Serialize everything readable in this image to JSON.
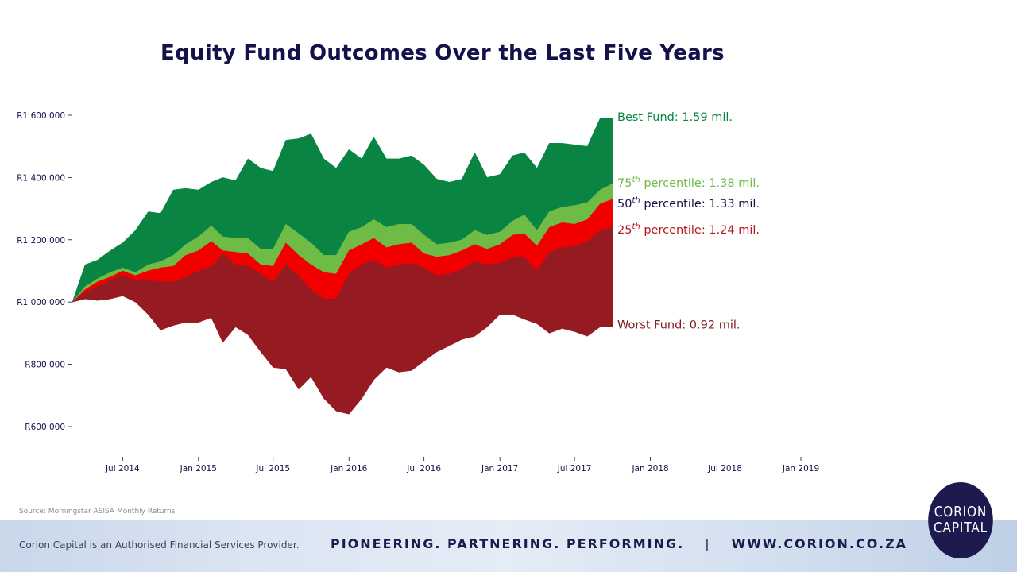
{
  "chart_data": {
    "type": "area",
    "title": "Equity Fund Outcomes Over the Last Five Years",
    "xlabel": "",
    "ylabel": "",
    "x_range": [
      "2014-03-01",
      "2019-01-01"
    ],
    "ylim": [
      520000,
      1660000
    ],
    "x_ticks": [
      {
        "date": "2014-07-01",
        "label": "Jul 2014"
      },
      {
        "date": "2015-01-01",
        "label": "Jan 2015"
      },
      {
        "date": "2015-07-01",
        "label": "Jul 2015"
      },
      {
        "date": "2016-01-01",
        "label": "Jan 2016"
      },
      {
        "date": "2016-07-01",
        "label": "Jul 2016"
      },
      {
        "date": "2017-01-01",
        "label": "Jan 2017"
      },
      {
        "date": "2017-07-01",
        "label": "Jul 2017"
      },
      {
        "date": "2018-01-01",
        "label": "Jan 2018"
      },
      {
        "date": "2018-07-01",
        "label": "Jul 2018"
      },
      {
        "date": "2019-01-01",
        "label": "Jan 2019"
      }
    ],
    "y_ticks": [
      {
        "value": 600000,
        "label": "R600 000"
      },
      {
        "value": 800000,
        "label": "R800 000"
      },
      {
        "value": 1000000,
        "label": "R1 000 000"
      },
      {
        "value": 1200000,
        "label": "R1 200 000"
      },
      {
        "value": 1400000,
        "label": "R1 400 000"
      },
      {
        "value": 1600000,
        "label": "R1 600 000"
      }
    ],
    "grid": false,
    "legend": "none",
    "x": [
      "2014-03",
      "2014-04",
      "2014-05",
      "2014-06",
      "2014-07",
      "2014-08",
      "2014-09",
      "2014-10",
      "2014-11",
      "2014-12",
      "2015-01",
      "2015-02",
      "2015-03",
      "2015-04",
      "2015-05",
      "2015-06",
      "2015-07",
      "2015-08",
      "2015-09",
      "2015-10",
      "2015-11",
      "2015-12",
      "2016-01",
      "2016-02",
      "2016-03",
      "2016-04",
      "2016-05",
      "2016-06",
      "2016-07",
      "2016-08",
      "2016-09",
      "2016-10",
      "2016-11",
      "2016-12",
      "2017-01",
      "2017-02",
      "2017-03",
      "2017-04",
      "2017-05",
      "2017-06",
      "2017-07",
      "2017-08",
      "2017-09",
      "2017-10"
    ],
    "series": [
      {
        "key": "best",
        "color": "#0a8443",
        "values": [
          1000000,
          1120000,
          1135000,
          1165000,
          1190000,
          1230000,
          1290000,
          1285000,
          1360000,
          1365000,
          1360000,
          1385000,
          1400000,
          1390000,
          1460000,
          1430000,
          1420000,
          1520000,
          1525000,
          1540000,
          1460000,
          1430000,
          1490000,
          1460000,
          1530000,
          1460000,
          1460000,
          1470000,
          1440000,
          1395000,
          1385000,
          1395000,
          1480000,
          1400000,
          1410000,
          1470000,
          1480000,
          1430000,
          1510000,
          1510000,
          1505000,
          1500000,
          1590000,
          1590000
        ]
      },
      {
        "key": "p75",
        "color": "#6ebc45",
        "values": [
          1000000,
          1050000,
          1075000,
          1095000,
          1110000,
          1095000,
          1120000,
          1130000,
          1150000,
          1185000,
          1210000,
          1245000,
          1210000,
          1205000,
          1205000,
          1170000,
          1170000,
          1250000,
          1220000,
          1190000,
          1150000,
          1150000,
          1225000,
          1240000,
          1265000,
          1240000,
          1250000,
          1250000,
          1215000,
          1185000,
          1190000,
          1200000,
          1230000,
          1215000,
          1225000,
          1260000,
          1280000,
          1230000,
          1290000,
          1305000,
          1310000,
          1320000,
          1360000,
          1380000
        ]
      },
      {
        "key": "p50",
        "color": "#f20000",
        "values": [
          1000000,
          1040000,
          1065000,
          1080000,
          1100000,
          1085000,
          1100000,
          1110000,
          1115000,
          1150000,
          1165000,
          1195000,
          1165000,
          1160000,
          1155000,
          1120000,
          1115000,
          1190000,
          1150000,
          1120000,
          1095000,
          1090000,
          1165000,
          1185000,
          1205000,
          1175000,
          1185000,
          1190000,
          1155000,
          1145000,
          1150000,
          1165000,
          1185000,
          1170000,
          1185000,
          1215000,
          1220000,
          1180000,
          1240000,
          1255000,
          1250000,
          1265000,
          1315000,
          1330000
        ]
      },
      {
        "key": "p25",
        "color": "#961a22",
        "values": [
          1000000,
          1030000,
          1050000,
          1070000,
          1085000,
          1070000,
          1070000,
          1065000,
          1065000,
          1080000,
          1100000,
          1115000,
          1155000,
          1120000,
          1115000,
          1090000,
          1065000,
          1120000,
          1085000,
          1040000,
          1010000,
          1010000,
          1090000,
          1120000,
          1135000,
          1110000,
          1120000,
          1125000,
          1110000,
          1085000,
          1090000,
          1105000,
          1130000,
          1120000,
          1125000,
          1145000,
          1145000,
          1100000,
          1160000,
          1175000,
          1180000,
          1195000,
          1230000,
          1240000
        ]
      },
      {
        "key": "worst",
        "color": "#961a22",
        "values": [
          1000000,
          1010000,
          1005000,
          1010000,
          1020000,
          1000000,
          960000,
          910000,
          925000,
          935000,
          935000,
          950000,
          870000,
          920000,
          895000,
          840000,
          790000,
          785000,
          720000,
          760000,
          690000,
          650000,
          640000,
          690000,
          750000,
          790000,
          775000,
          780000,
          810000,
          840000,
          860000,
          880000,
          890000,
          920000,
          960000,
          960000,
          945000,
          930000,
          900000,
          915000,
          905000,
          890000,
          920000,
          920000
        ]
      }
    ],
    "annotations": [
      {
        "key": "best",
        "value": 1590000,
        "color": "#0a8443",
        "ordinal": "",
        "rest": "Best Fund: 1.59 mil."
      },
      {
        "key": "p75",
        "value": 1380000,
        "color": "#6ebc45",
        "ordinal": "75",
        "sup": "th",
        "rest": " percentile: 1.38 mil."
      },
      {
        "key": "p50",
        "value": 1330000,
        "color": "#14124a",
        "ordinal": "50",
        "sup": "th",
        "rest": " percentile: 1.33 mil."
      },
      {
        "key": "p25",
        "value": 1240000,
        "color": "#b3161d",
        "ordinal": "25",
        "sup": "th",
        "rest": " percentile: 1.24 mil."
      },
      {
        "key": "worst",
        "value": 920000,
        "color": "#7d1b22",
        "ordinal": "",
        "rest": "Worst Fund: 0.92 mil."
      }
    ]
  },
  "source_note": "Source: Morningstar ASISA Monthly Returns",
  "footer": {
    "fsp_note": "Corion Capital is an Authorised Financial Services Provider.",
    "tagline": "PIONEERING. PARTNERING. PERFORMING.",
    "divider": "|",
    "url": "WWW.CORION.CO.ZA"
  },
  "logo": {
    "line1": "CORION",
    "line2": "CAPITAL",
    "color": "#1c1a4e"
  }
}
